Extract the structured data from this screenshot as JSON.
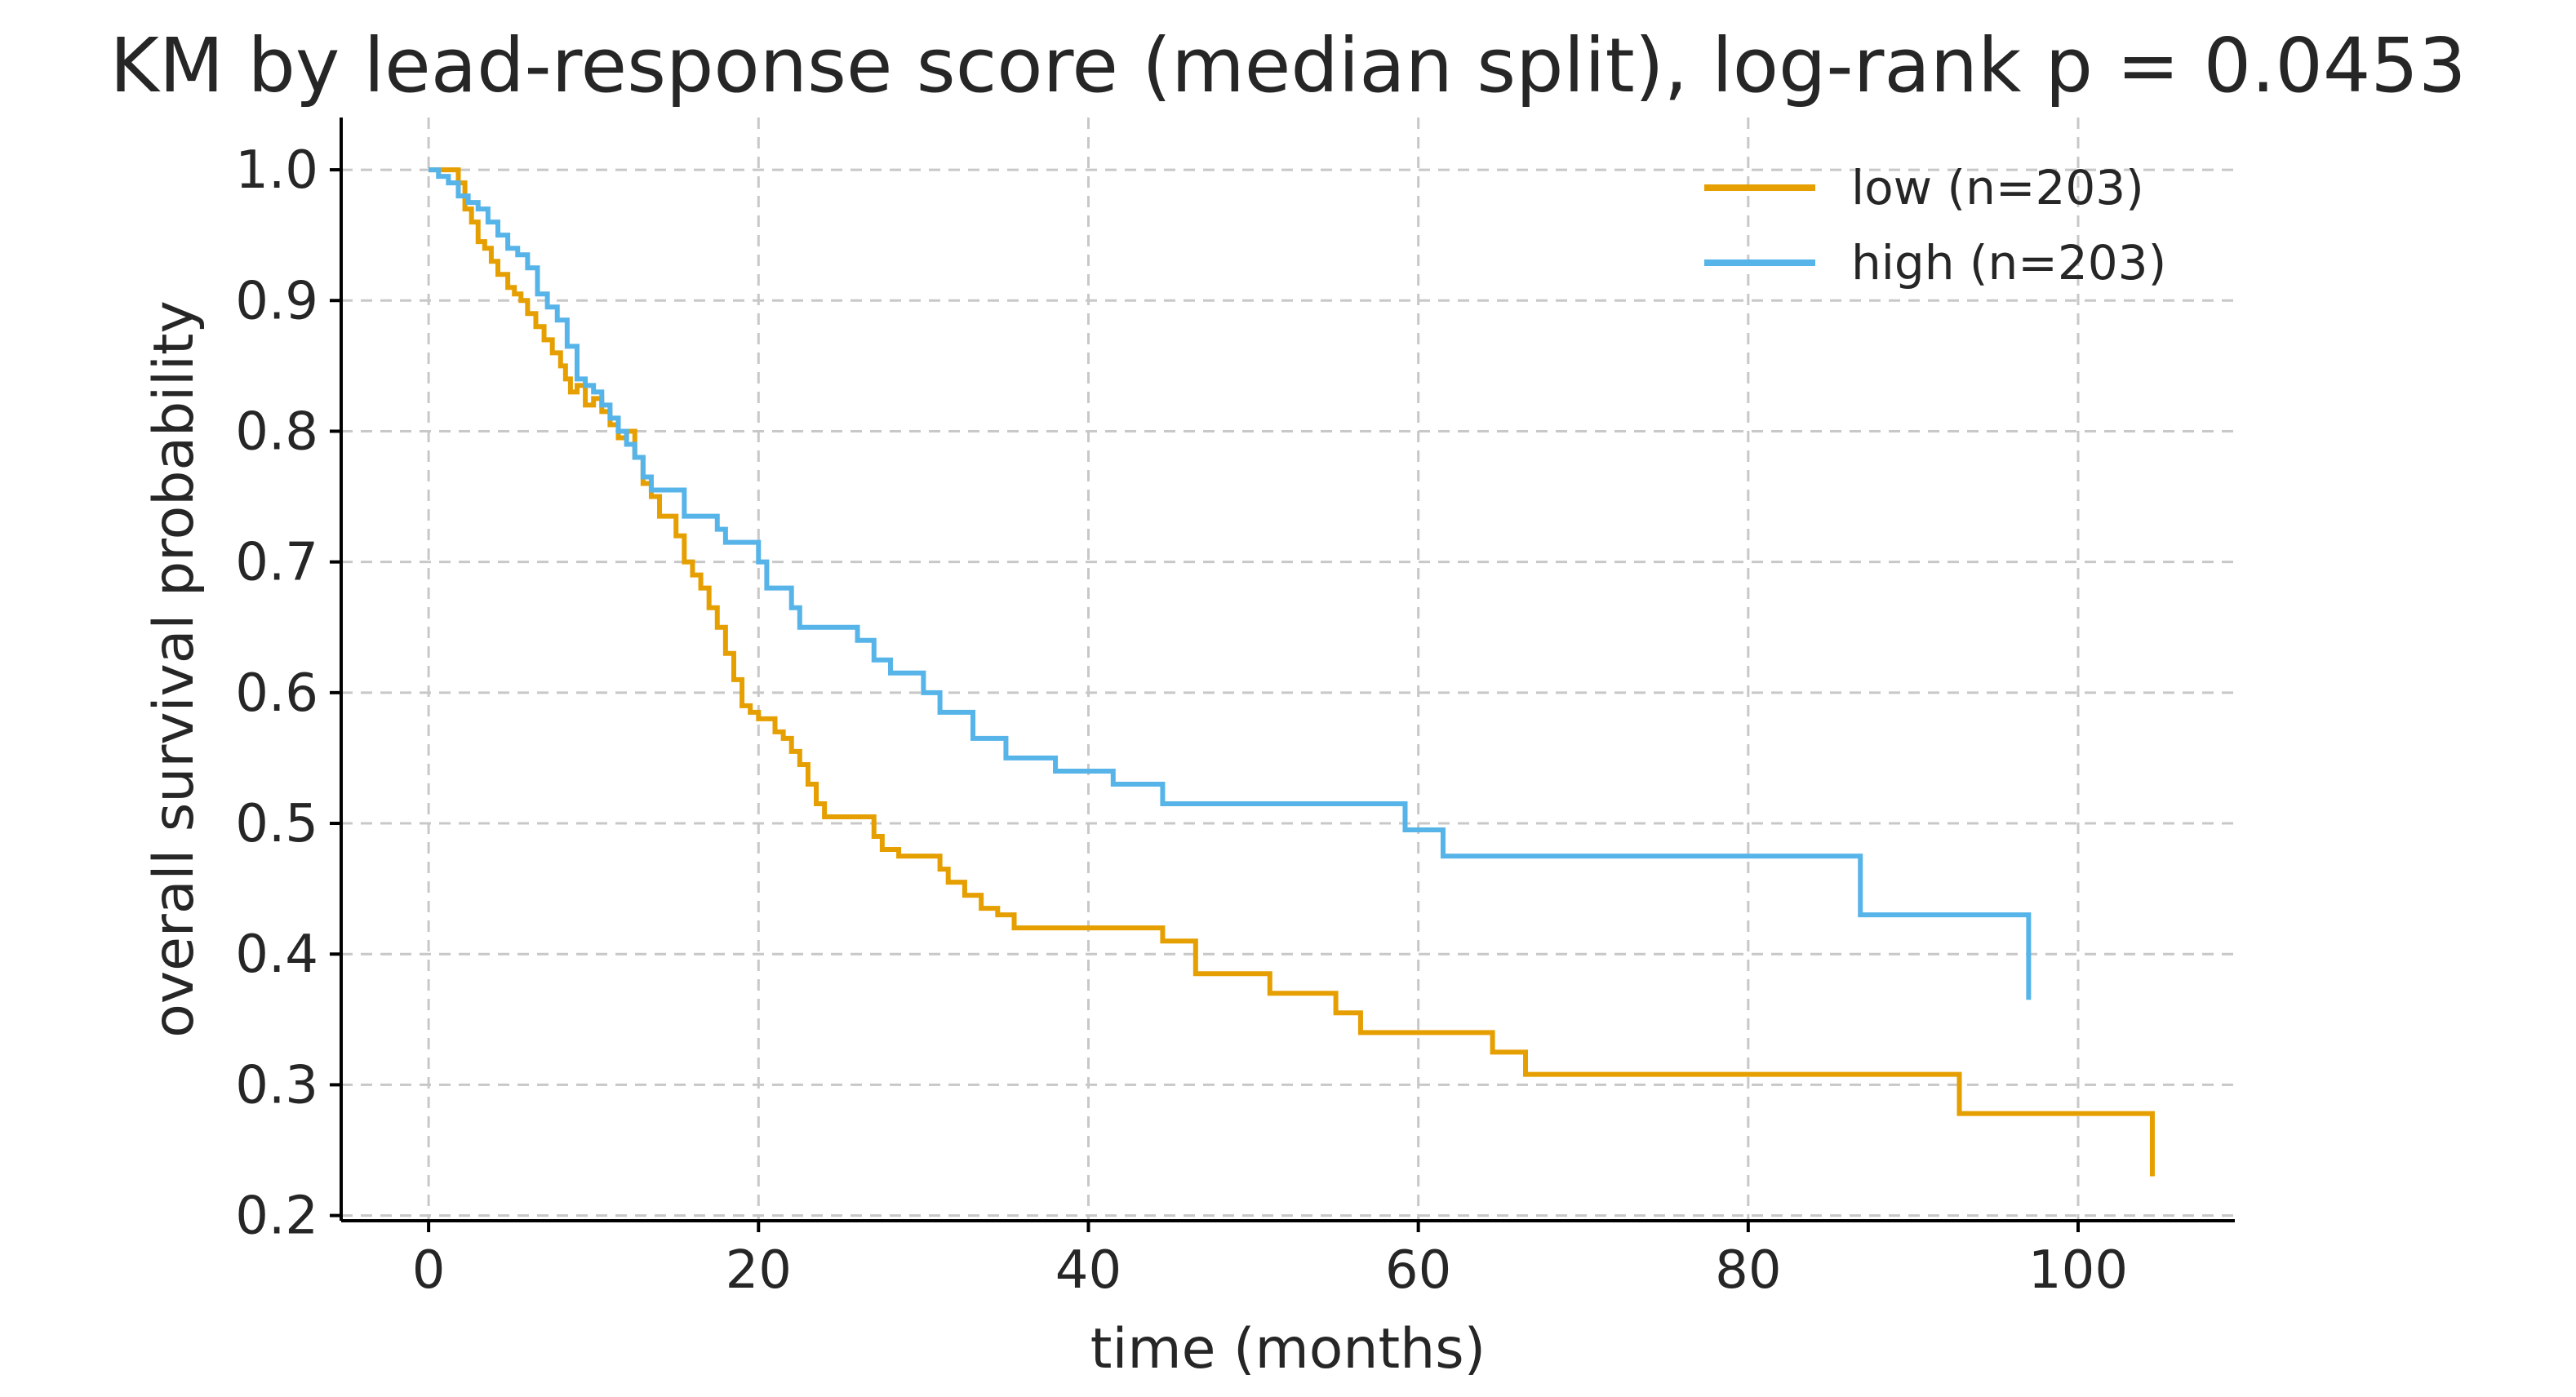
{
  "chart_data": {
    "type": "line",
    "subtype": "kaplan-meier-step",
    "title": "KM by lead-response score (median split), log-rank p = 0.0453",
    "xlabel": "time (months)",
    "ylabel": "overall survival probability",
    "xlim": [
      -5.3,
      109.5
    ],
    "ylim": [
      0.196,
      1.04
    ],
    "xticks": [
      0,
      20,
      40,
      60,
      80,
      100
    ],
    "yticks": [
      0.2,
      0.3,
      0.4,
      0.5,
      0.6,
      0.7,
      0.8,
      0.9,
      1.0
    ],
    "xtick_labels": [
      "0",
      "20",
      "40",
      "60",
      "80",
      "100"
    ],
    "ytick_labels": [
      "0.2",
      "0.3",
      "0.4",
      "0.5",
      "0.6",
      "0.7",
      "0.8",
      "0.9",
      "1.0"
    ],
    "grid": true,
    "legend_position": "top-right",
    "series": [
      {
        "name": "low (n=203)",
        "color": "#E69F00",
        "x": [
          0,
          1.8,
          2.2,
          2.6,
          3.0,
          3.4,
          3.8,
          4.2,
          4.8,
          5.2,
          5.6,
          6.0,
          6.5,
          7.0,
          7.5,
          8.0,
          8.3,
          8.6,
          9.0,
          9.5,
          10.0,
          10.5,
          11.0,
          11.5,
          12.0,
          12.5,
          13.0,
          13.5,
          14.0,
          14.5,
          15.0,
          15.5,
          16.0,
          16.5,
          17.0,
          17.5,
          18.0,
          18.5,
          19.0,
          19.5,
          20.0,
          21.0,
          21.5,
          22.0,
          22.5,
          23.0,
          23.5,
          24.0,
          24.5,
          27.0,
          27.5,
          28.5,
          31.0,
          31.5,
          32.5,
          33.5,
          34.5,
          35.5,
          44.5,
          46.5,
          51.0,
          55.0,
          56.5,
          64.5,
          66.5,
          92.8
        ],
        "y": [
          1.0,
          0.99,
          0.97,
          0.96,
          0.945,
          0.94,
          0.93,
          0.92,
          0.91,
          0.905,
          0.9,
          0.89,
          0.88,
          0.87,
          0.86,
          0.85,
          0.84,
          0.83,
          0.835,
          0.82,
          0.825,
          0.815,
          0.805,
          0.795,
          0.8,
          0.78,
          0.76,
          0.75,
          0.735,
          0.735,
          0.72,
          0.7,
          0.69,
          0.68,
          0.665,
          0.65,
          0.63,
          0.61,
          0.59,
          0.585,
          0.58,
          0.57,
          0.565,
          0.555,
          0.545,
          0.53,
          0.515,
          0.505,
          0.505,
          0.49,
          0.48,
          0.475,
          0.465,
          0.455,
          0.445,
          0.435,
          0.43,
          0.42,
          0.41,
          0.385,
          0.37,
          0.355,
          0.34,
          0.325,
          0.308,
          0.278
        ],
        "end_x": 104.5,
        "end_y": 0.23
      },
      {
        "name": "high (n=203)",
        "color": "#56B4E9",
        "x": [
          0,
          0.6,
          1.2,
          1.8,
          2.4,
          3.0,
          3.6,
          4.2,
          4.8,
          5.4,
          6.0,
          6.6,
          7.2,
          7.8,
          8.4,
          9.0,
          9.5,
          10.0,
          10.5,
          11.0,
          11.5,
          12.0,
          12.5,
          13.0,
          13.5,
          14.0,
          15.5,
          16.5,
          17.5,
          18.0,
          20.0,
          20.5,
          22.0,
          22.5,
          26.0,
          27.0,
          28.0,
          30.0,
          31.0,
          33.0,
          35.0,
          38.0,
          41.5,
          44.5,
          48.0,
          59.2,
          61.5,
          86.8
        ],
        "y": [
          1.0,
          0.995,
          0.99,
          0.98,
          0.975,
          0.97,
          0.96,
          0.95,
          0.94,
          0.935,
          0.925,
          0.905,
          0.895,
          0.885,
          0.865,
          0.84,
          0.835,
          0.83,
          0.82,
          0.81,
          0.8,
          0.79,
          0.78,
          0.765,
          0.755,
          0.755,
          0.735,
          0.735,
          0.725,
          0.715,
          0.7,
          0.68,
          0.665,
          0.65,
          0.64,
          0.625,
          0.615,
          0.6,
          0.585,
          0.565,
          0.55,
          0.54,
          0.53,
          0.515,
          0.515,
          0.495,
          0.475,
          0.43
        ],
        "end_x": 97.0,
        "end_y": 0.365
      }
    ]
  }
}
